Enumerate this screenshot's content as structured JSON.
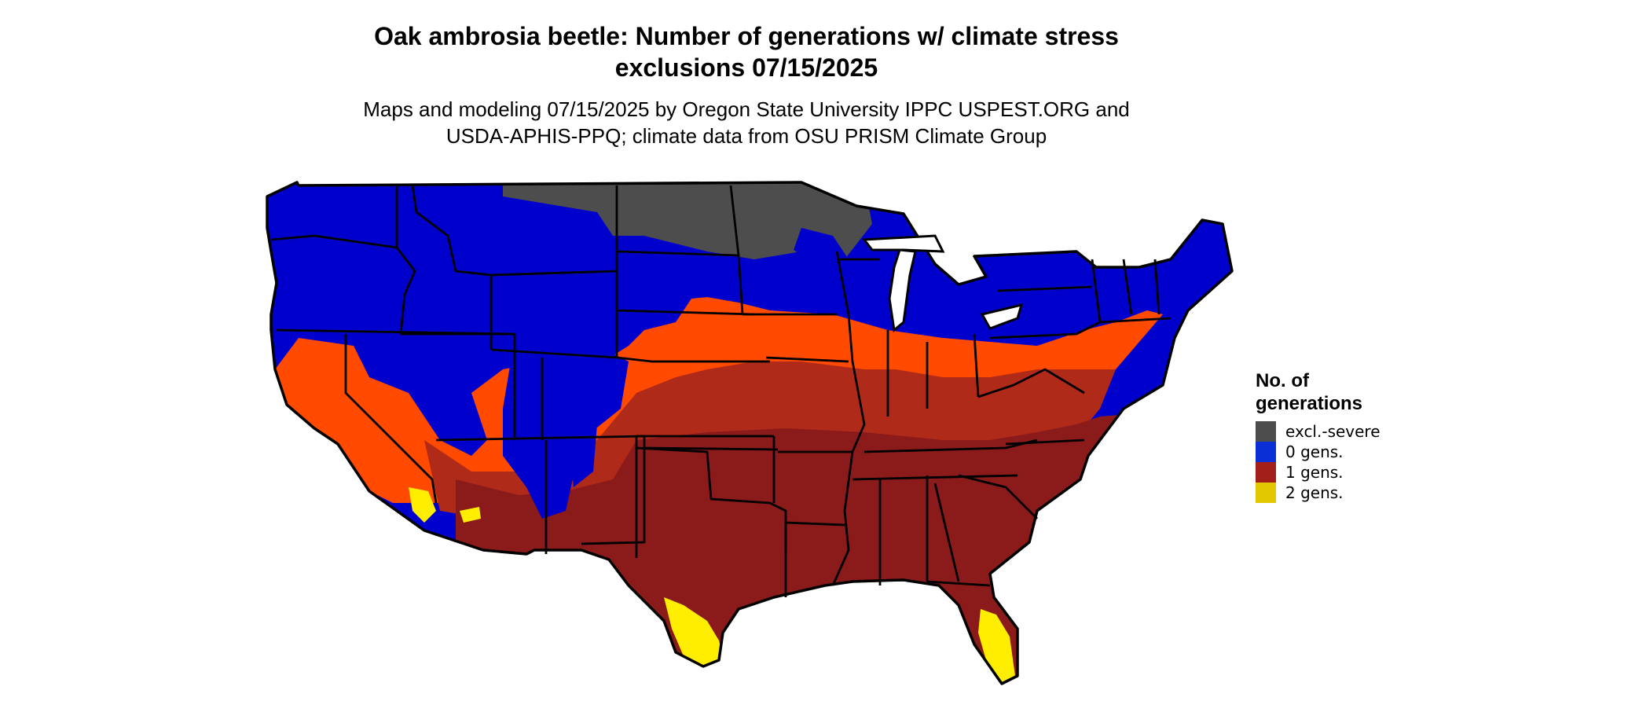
{
  "title_line1": "Oak ambrosia beetle: Number of generations w/ climate stress",
  "title_line2": "exclusions 07/15/2025",
  "subtitle_line1": "Maps and modeling 07/15/2025 by Oregon State University IPPC USPEST.ORG and",
  "subtitle_line2": "USDA-APHIS-PPQ; climate data from OSU PRISM Climate Group",
  "legend": {
    "title_line1": "No. of",
    "title_line2": "generations",
    "items": [
      {
        "label": "excl.-severe",
        "color": "#4d4d4d"
      },
      {
        "label": "0 gens.",
        "color": "#0a2fd6"
      },
      {
        "label": "1 gens.",
        "color": "#a3201a"
      },
      {
        "label": "2 gens.",
        "color": "#e2c800"
      }
    ]
  },
  "map_colors": {
    "excl_severe": "#4d4d4d",
    "zero_gens": "#0000cc",
    "one_gen_low": "#ff4a00",
    "one_gen_mid": "#b02a1a",
    "one_gen_high": "#8b1a1a",
    "two_gens": "#ffee00",
    "borders": "#000000"
  }
}
